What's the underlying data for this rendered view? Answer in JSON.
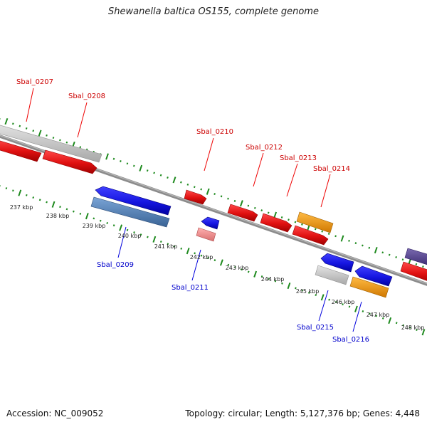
{
  "title": "Shewanella baltica OS155, complete genome",
  "footer": {
    "accession": "Accession: NC_009052",
    "topology": "Topology: circular; Length: 5,127,376 bp; Genes: 4,448"
  },
  "colors": {
    "backbone": "#8c8c8c",
    "tick": "#1e8a1e",
    "label_top": "#cc0000",
    "label_bottom": "#0000cc",
    "red": "#ee1111",
    "pink": "#f08f8f",
    "blue": "#1515e0",
    "steel": "#4f7fb5",
    "gray": "#c8c8c8",
    "orange": "#f29a10",
    "purple": "#5a4a8f"
  },
  "kbp_labels": [
    "237 kbp",
    "238 kbp",
    "239 kbp",
    "240 kbp",
    "241 kbp",
    "242 kbp",
    "243 kbp",
    "244 kbp",
    "245 kbp",
    "246 kbp",
    "247 kbp",
    "248 kbp"
  ],
  "genes_top": [
    "Sbal_0207",
    "Sbal_0208",
    "Sbal_0210",
    "Sbal_0212",
    "Sbal_0213",
    "Sbal_0214"
  ],
  "genes_bottom": [
    "Sbal_0209",
    "Sbal_0211",
    "Sbal_0215",
    "Sbal_0216"
  ]
}
